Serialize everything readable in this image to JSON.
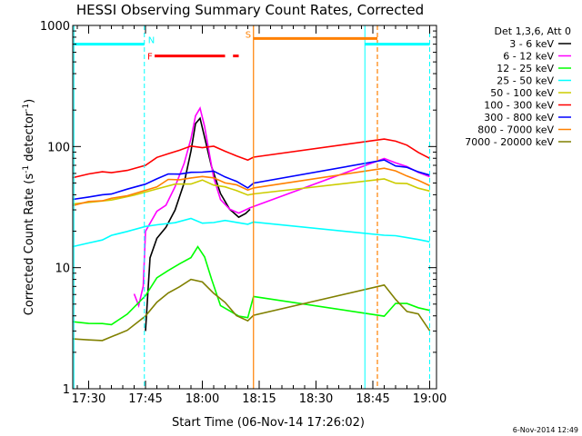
{
  "chart_data": {
    "type": "line",
    "title": "HESSI Observing Summary Count Rates, Corrected",
    "xlabel": "Start Time (06-Nov-14 17:26:02)",
    "ylabel_pre": "Corrected Count Rate (s",
    "ylabel_sup1": "-1",
    "ylabel_mid": " detector",
    "ylabel_sup2": "-1",
    "ylabel_post": ")",
    "y_scale": "log",
    "ylim": [
      1,
      1000
    ],
    "xlim_minutes": [
      17.43,
      19.03
    ],
    "x_tick_labels": [
      "17:30",
      "17:45",
      "18:00",
      "18:15",
      "18:30",
      "18:45",
      "19:00"
    ],
    "x_tick_minutes": [
      17.5,
      17.75,
      18.0,
      18.25,
      18.5,
      18.75,
      19.0
    ],
    "y_tick_labels": [
      "1",
      "10",
      "100",
      "1000"
    ],
    "y_tick_values": [
      1,
      10,
      100,
      1000
    ],
    "legend_header": "Det 1,3,6, Att 0",
    "legend_placement": "right",
    "series": [
      {
        "name": "3 - 6 keV",
        "color": "#000000",
        "points": [
          [
            17.75,
            3
          ],
          [
            17.77,
            12
          ],
          [
            17.8,
            18
          ],
          [
            17.84,
            22
          ],
          [
            17.88,
            30
          ],
          [
            17.92,
            50
          ],
          [
            17.95,
            95
          ],
          [
            17.97,
            150
          ],
          [
            17.99,
            170
          ],
          [
            18.01,
            120
          ],
          [
            18.04,
            70
          ],
          [
            18.08,
            40
          ],
          [
            18.12,
            30
          ],
          [
            18.16,
            27
          ],
          [
            18.19,
            28
          ],
          [
            18.21,
            31
          ]
        ]
      },
      {
        "name": "6 - 12 keV",
        "color": "#ff00ff",
        "points": [
          [
            17.7,
            6
          ],
          [
            17.72,
            5
          ],
          [
            17.74,
            7
          ],
          [
            17.75,
            20
          ],
          [
            17.8,
            30
          ],
          [
            17.84,
            34
          ],
          [
            17.88,
            45
          ],
          [
            17.92,
            70
          ],
          [
            17.95,
            120
          ],
          [
            17.97,
            180
          ],
          [
            17.99,
            200
          ],
          [
            18.01,
            150
          ],
          [
            18.03,
            90
          ],
          [
            18.05,
            55
          ],
          [
            18.08,
            36
          ],
          [
            18.12,
            31
          ],
          [
            18.16,
            29
          ],
          [
            18.21,
            30
          ],
          [
            18.8,
            80
          ],
          [
            18.85,
            75
          ],
          [
            18.9,
            68
          ],
          [
            18.95,
            62
          ],
          [
            19.0,
            58
          ]
        ]
      },
      {
        "name": "12 - 25 keV",
        "color": "#00ff00",
        "points": [
          [
            17.43,
            3.5
          ],
          [
            17.5,
            3.5
          ],
          [
            17.56,
            3.5
          ],
          [
            17.6,
            3.5
          ],
          [
            17.67,
            4
          ],
          [
            17.75,
            6
          ],
          [
            17.8,
            8
          ],
          [
            17.85,
            9.5
          ],
          [
            17.9,
            11
          ],
          [
            17.95,
            12
          ],
          [
            17.98,
            15
          ],
          [
            18.01,
            12
          ],
          [
            18.04,
            8
          ],
          [
            18.08,
            5
          ],
          [
            18.12,
            4.5
          ],
          [
            18.16,
            4
          ],
          [
            18.2,
            4
          ],
          [
            18.225,
            6
          ],
          [
            18.8,
            4
          ],
          [
            18.85,
            5
          ],
          [
            18.9,
            5
          ],
          [
            18.95,
            4.5
          ],
          [
            19.0,
            4.5
          ]
        ]
      },
      {
        "name": "25 - 50 keV",
        "color": "#00ffff",
        "points": [
          [
            17.43,
            15
          ],
          [
            17.5,
            16
          ],
          [
            17.56,
            17
          ],
          [
            17.6,
            18
          ],
          [
            17.67,
            20
          ],
          [
            17.75,
            22
          ],
          [
            17.8,
            23
          ],
          [
            17.88,
            24
          ],
          [
            17.95,
            25
          ],
          [
            18.0,
            24
          ],
          [
            18.05,
            24
          ],
          [
            18.1,
            24
          ],
          [
            18.15,
            23
          ],
          [
            18.2,
            22
          ],
          [
            18.225,
            23
          ],
          [
            18.8,
            18
          ],
          [
            18.85,
            18
          ],
          [
            18.9,
            17.5
          ],
          [
            18.95,
            17
          ],
          [
            19.0,
            17
          ]
        ]
      },
      {
        "name": "50 - 100 keV",
        "color": "#cccc00",
        "points": [
          [
            17.43,
            34
          ],
          [
            17.5,
            35
          ],
          [
            17.6,
            37
          ],
          [
            17.7,
            40
          ],
          [
            17.8,
            44
          ],
          [
            17.88,
            48
          ],
          [
            17.95,
            50
          ],
          [
            18.0,
            51
          ],
          [
            18.05,
            50
          ],
          [
            18.1,
            47
          ],
          [
            18.15,
            43
          ],
          [
            18.2,
            40
          ],
          [
            18.225,
            42
          ],
          [
            18.8,
            52
          ],
          [
            18.85,
            50
          ],
          [
            18.9,
            48
          ],
          [
            18.95,
            45
          ],
          [
            19.0,
            43
          ]
        ]
      },
      {
        "name": "100 - 300 keV",
        "color": "#ff0000",
        "points": [
          [
            17.43,
            57
          ],
          [
            17.5,
            58
          ],
          [
            17.56,
            60
          ],
          [
            17.6,
            62
          ],
          [
            17.67,
            66
          ],
          [
            17.75,
            72
          ],
          [
            17.8,
            80
          ],
          [
            17.85,
            86
          ],
          [
            17.9,
            92
          ],
          [
            17.95,
            98
          ],
          [
            18.0,
            100
          ],
          [
            18.05,
            98
          ],
          [
            18.1,
            94
          ],
          [
            18.15,
            87
          ],
          [
            18.2,
            80
          ],
          [
            18.225,
            85
          ],
          [
            18.8,
            115
          ],
          [
            18.85,
            108
          ],
          [
            18.9,
            100
          ],
          [
            18.95,
            92
          ],
          [
            19.0,
            80
          ]
        ]
      },
      {
        "name": "300 - 800 keV",
        "color": "#0000ff",
        "points": [
          [
            17.43,
            38
          ],
          [
            17.5,
            39
          ],
          [
            17.56,
            40
          ],
          [
            17.6,
            42
          ],
          [
            17.67,
            45
          ],
          [
            17.75,
            50
          ],
          [
            17.8,
            55
          ],
          [
            17.85,
            58
          ],
          [
            17.9,
            61
          ],
          [
            17.95,
            63
          ],
          [
            18.0,
            64
          ],
          [
            18.05,
            62
          ],
          [
            18.1,
            58
          ],
          [
            18.15,
            52
          ],
          [
            18.2,
            47
          ],
          [
            18.225,
            50
          ],
          [
            18.8,
            78
          ],
          [
            18.85,
            72
          ],
          [
            18.9,
            66
          ],
          [
            18.95,
            62
          ],
          [
            19.0,
            57
          ]
        ]
      },
      {
        "name": "800 - 7000 keV",
        "color": "#ff8000",
        "points": [
          [
            17.43,
            33
          ],
          [
            17.5,
            34
          ],
          [
            17.56,
            35
          ],
          [
            17.6,
            37
          ],
          [
            17.67,
            40
          ],
          [
            17.75,
            44
          ],
          [
            17.8,
            48
          ],
          [
            17.85,
            52
          ],
          [
            17.9,
            55
          ],
          [
            17.95,
            57
          ],
          [
            18.0,
            58
          ],
          [
            18.05,
            56
          ],
          [
            18.1,
            52
          ],
          [
            18.15,
            48
          ],
          [
            18.2,
            44
          ],
          [
            18.225,
            46
          ],
          [
            18.8,
            66
          ],
          [
            18.85,
            61
          ],
          [
            18.9,
            57
          ],
          [
            18.95,
            53
          ],
          [
            19.0,
            49
          ]
        ]
      },
      {
        "name": "7000 - 20000 keV",
        "color": "#808000",
        "points": [
          [
            17.43,
            2.5
          ],
          [
            17.5,
            2.5
          ],
          [
            17.56,
            2.5
          ],
          [
            17.6,
            2.6
          ],
          [
            17.67,
            3
          ],
          [
            17.75,
            4
          ],
          [
            17.8,
            5
          ],
          [
            17.85,
            6
          ],
          [
            17.9,
            7
          ],
          [
            17.95,
            8
          ],
          [
            18.0,
            7.5
          ],
          [
            18.05,
            6
          ],
          [
            18.1,
            5
          ],
          [
            18.15,
            4
          ],
          [
            18.2,
            3.5
          ],
          [
            18.225,
            4
          ],
          [
            18.8,
            7
          ],
          [
            18.85,
            5.5
          ],
          [
            18.9,
            4.5
          ],
          [
            18.95,
            4
          ],
          [
            19.0,
            3
          ]
        ]
      }
    ],
    "flag_lines": {
      "cyan_solid_minutes": [
        17.435,
        18.715
      ],
      "cyan_dashed_minutes": [
        17.745,
        19.0
      ],
      "orange_solid_minutes": [
        18.225
      ],
      "orange_dashed_minutes": [
        18.77
      ]
    },
    "flag_bars": [
      {
        "label": "N",
        "color": "#00ffff",
        "level": 700,
        "from": 17.435,
        "to": 19.0,
        "gap_from": 17.745,
        "gap_to": 18.715
      },
      {
        "label": "S",
        "color": "#ff8000",
        "level": 780,
        "from": 18.225,
        "to": 18.77
      },
      {
        "label": "F",
        "color": "#ff0000",
        "level": 560,
        "segments": [
          [
            17.79,
            18.1
          ],
          [
            18.135,
            18.16
          ]
        ]
      }
    ],
    "flag_letters": {
      "N": "N",
      "S": "S",
      "F": "F"
    }
  },
  "footer": {
    "timestamp": "6-Nov-2014 12:49"
  }
}
